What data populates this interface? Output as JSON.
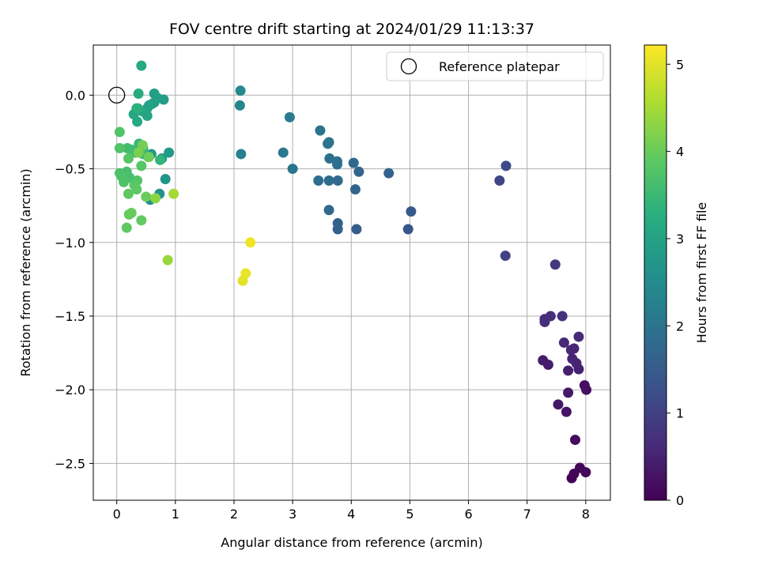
{
  "chart_data": {
    "type": "scatter",
    "title": "FOV centre drift starting at 2024/01/29 11:13:37",
    "xlabel": "Angular distance from reference (arcmin)",
    "ylabel": "Rotation from reference (arcmin)",
    "xlim": [
      -0.4,
      8.42
    ],
    "ylim": [
      -2.75,
      0.34
    ],
    "xticks": [
      0,
      1,
      2,
      3,
      4,
      5,
      6,
      7,
      8
    ],
    "yticks": [
      -2.5,
      -2.0,
      -1.5,
      -1.0,
      -0.5,
      0.0
    ],
    "xtick_labels": [
      "0",
      "1",
      "2",
      "3",
      "4",
      "5",
      "6",
      "7",
      "8"
    ],
    "ytick_labels": [
      "−2.5",
      "−2.0",
      "−1.5",
      "−1.0",
      "−0.5",
      "0.0"
    ],
    "grid": true,
    "legend": {
      "placement": "top-right",
      "entries": [
        "Reference platepar"
      ]
    },
    "colorbar": {
      "label": "Hours from first FF file",
      "colormap": "viridis",
      "range": [
        0,
        5.22
      ],
      "ticks": [
        0,
        1,
        2,
        3,
        4,
        5
      ],
      "tick_labels": [
        "0",
        "1",
        "2",
        "3",
        "4",
        "5"
      ]
    },
    "reference": {
      "x": 0,
      "y": 0
    },
    "points": [
      {
        "x": 7.76,
        "y": -2.6,
        "c": 0.02
      },
      {
        "x": 7.8,
        "y": -2.57,
        "c": 0.05
      },
      {
        "x": 7.9,
        "y": -2.53,
        "c": 0.08
      },
      {
        "x": 8.0,
        "y": -2.56,
        "c": 0.1
      },
      {
        "x": 7.82,
        "y": -2.34,
        "c": 0.15
      },
      {
        "x": 7.98,
        "y": -1.97,
        "c": 0.2
      },
      {
        "x": 8.01,
        "y": -2.0,
        "c": 0.22
      },
      {
        "x": 7.67,
        "y": -2.15,
        "c": 0.28
      },
      {
        "x": 7.53,
        "y": -2.1,
        "c": 0.32
      },
      {
        "x": 7.7,
        "y": -2.02,
        "c": 0.35
      },
      {
        "x": 7.27,
        "y": -1.8,
        "c": 0.4
      },
      {
        "x": 7.36,
        "y": -1.83,
        "c": 0.42
      },
      {
        "x": 7.7,
        "y": -1.87,
        "c": 0.45
      },
      {
        "x": 7.88,
        "y": -1.86,
        "c": 0.48
      },
      {
        "x": 7.84,
        "y": -1.82,
        "c": 0.5
      },
      {
        "x": 7.77,
        "y": -1.79,
        "c": 0.52
      },
      {
        "x": 7.8,
        "y": -1.72,
        "c": 0.55
      },
      {
        "x": 7.75,
        "y": -1.73,
        "c": 0.57
      },
      {
        "x": 7.63,
        "y": -1.68,
        "c": 0.6
      },
      {
        "x": 7.88,
        "y": -1.64,
        "c": 0.62
      },
      {
        "x": 7.3,
        "y": -1.52,
        "c": 0.65
      },
      {
        "x": 7.3,
        "y": -1.54,
        "c": 0.67
      },
      {
        "x": 7.4,
        "y": -1.5,
        "c": 0.7
      },
      {
        "x": 7.6,
        "y": -1.5,
        "c": 0.72
      },
      {
        "x": 7.48,
        "y": -1.15,
        "c": 0.85
      },
      {
        "x": 6.63,
        "y": -1.09,
        "c": 1.0
      },
      {
        "x": 6.53,
        "y": -0.58,
        "c": 1.1
      },
      {
        "x": 6.64,
        "y": -0.48,
        "c": 1.15
      },
      {
        "x": 4.97,
        "y": -0.91,
        "c": 1.4
      },
      {
        "x": 5.02,
        "y": -0.79,
        "c": 1.45
      },
      {
        "x": 4.09,
        "y": -0.91,
        "c": 1.55
      },
      {
        "x": 3.77,
        "y": -0.91,
        "c": 1.6
      },
      {
        "x": 3.77,
        "y": -0.87,
        "c": 1.62
      },
      {
        "x": 4.64,
        "y": -0.53,
        "c": 1.65
      },
      {
        "x": 4.07,
        "y": -0.64,
        "c": 1.7
      },
      {
        "x": 4.13,
        "y": -0.52,
        "c": 1.72
      },
      {
        "x": 4.04,
        "y": -0.46,
        "c": 1.75
      },
      {
        "x": 3.62,
        "y": -0.78,
        "c": 1.78
      },
      {
        "x": 3.77,
        "y": -0.58,
        "c": 1.8
      },
      {
        "x": 3.62,
        "y": -0.58,
        "c": 1.82
      },
      {
        "x": 3.44,
        "y": -0.58,
        "c": 1.85
      },
      {
        "x": 3.76,
        "y": -0.47,
        "c": 1.87
      },
      {
        "x": 3.76,
        "y": -0.45,
        "c": 1.9
      },
      {
        "x": 3.63,
        "y": -0.43,
        "c": 1.92
      },
      {
        "x": 3.6,
        "y": -0.33,
        "c": 1.95
      },
      {
        "x": 3.62,
        "y": -0.32,
        "c": 1.97
      },
      {
        "x": 3.47,
        "y": -0.24,
        "c": 2.0
      },
      {
        "x": 3.0,
        "y": -0.5,
        "c": 2.05
      },
      {
        "x": 2.84,
        "y": -0.39,
        "c": 2.1
      },
      {
        "x": 2.95,
        "y": -0.15,
        "c": 2.15
      },
      {
        "x": 2.12,
        "y": -0.4,
        "c": 2.25
      },
      {
        "x": 2.1,
        "y": -0.07,
        "c": 2.4
      },
      {
        "x": 2.11,
        "y": 0.03,
        "c": 2.45
      },
      {
        "x": 0.57,
        "y": -0.71,
        "c": 2.6
      },
      {
        "x": 0.73,
        "y": -0.67,
        "c": 2.65
      },
      {
        "x": 0.83,
        "y": -0.57,
        "c": 2.7
      },
      {
        "x": 0.77,
        "y": -0.43,
        "c": 2.75
      },
      {
        "x": 0.89,
        "y": -0.39,
        "c": 2.78
      },
      {
        "x": 0.59,
        "y": -0.4,
        "c": 2.8
      },
      {
        "x": 0.8,
        "y": -0.03,
        "c": 2.85
      },
      {
        "x": 0.64,
        "y": -0.05,
        "c": 2.88
      },
      {
        "x": 0.6,
        "y": -0.06,
        "c": 2.9
      },
      {
        "x": 0.64,
        "y": 0.01,
        "c": 2.92
      },
      {
        "x": 0.7,
        "y": -0.02,
        "c": 2.94
      },
      {
        "x": 0.52,
        "y": -0.09,
        "c": 2.97
      },
      {
        "x": 0.55,
        "y": -0.07,
        "c": 3.0
      },
      {
        "x": 0.52,
        "y": -0.14,
        "c": 3.03
      },
      {
        "x": 0.44,
        "y": -0.11,
        "c": 3.05
      },
      {
        "x": 0.34,
        "y": -0.09,
        "c": 3.08
      },
      {
        "x": 0.29,
        "y": -0.13,
        "c": 3.1
      },
      {
        "x": 0.35,
        "y": -0.18,
        "c": 3.12
      },
      {
        "x": 0.42,
        "y": 0.2,
        "c": 3.15
      },
      {
        "x": 0.37,
        "y": 0.01,
        "c": 3.2
      },
      {
        "x": 0.36,
        "y": -0.09,
        "c": 3.3
      },
      {
        "x": 0.74,
        "y": -0.44,
        "c": 3.4
      },
      {
        "x": 0.38,
        "y": -0.33,
        "c": 3.45
      },
      {
        "x": 0.45,
        "y": -0.36,
        "c": 3.5
      },
      {
        "x": 0.25,
        "y": -0.37,
        "c": 3.52
      },
      {
        "x": 0.32,
        "y": -0.39,
        "c": 3.55
      },
      {
        "x": 0.45,
        "y": -0.4,
        "c": 3.58
      },
      {
        "x": 0.18,
        "y": -0.36,
        "c": 3.6
      },
      {
        "x": 0.54,
        "y": -0.42,
        "c": 3.62
      },
      {
        "x": 0.17,
        "y": -0.52,
        "c": 3.65
      },
      {
        "x": 0.22,
        "y": -0.56,
        "c": 3.68
      },
      {
        "x": 0.05,
        "y": -0.53,
        "c": 3.7
      },
      {
        "x": 0.08,
        "y": -0.55,
        "c": 3.72
      },
      {
        "x": 0.12,
        "y": -0.59,
        "c": 3.74
      },
      {
        "x": 0.05,
        "y": -0.36,
        "c": 3.76
      },
      {
        "x": 0.05,
        "y": -0.25,
        "c": 3.78
      },
      {
        "x": 0.35,
        "y": -0.58,
        "c": 3.8
      },
      {
        "x": 0.42,
        "y": -0.48,
        "c": 3.82
      },
      {
        "x": 0.2,
        "y": -0.43,
        "c": 3.84
      },
      {
        "x": 0.3,
        "y": -0.61,
        "c": 3.86
      },
      {
        "x": 0.34,
        "y": -0.64,
        "c": 3.88
      },
      {
        "x": 0.2,
        "y": -0.67,
        "c": 3.9
      },
      {
        "x": 0.17,
        "y": -0.9,
        "c": 3.92
      },
      {
        "x": 0.42,
        "y": -0.85,
        "c": 3.94
      },
      {
        "x": 0.21,
        "y": -0.81,
        "c": 3.96
      },
      {
        "x": 0.25,
        "y": -0.8,
        "c": 3.98
      },
      {
        "x": 0.5,
        "y": -0.69,
        "c": 4.0
      },
      {
        "x": 0.55,
        "y": -0.42,
        "c": 4.05
      },
      {
        "x": 0.44,
        "y": -0.34,
        "c": 4.1
      },
      {
        "x": 0.37,
        "y": -0.39,
        "c": 4.15
      },
      {
        "x": 0.66,
        "y": -0.7,
        "c": 4.3
      },
      {
        "x": 0.87,
        "y": -1.12,
        "c": 4.4
      },
      {
        "x": 0.97,
        "y": -0.67,
        "c": 4.5
      },
      {
        "x": 2.15,
        "y": -1.26,
        "c": 5.0
      },
      {
        "x": 2.2,
        "y": -1.21,
        "c": 5.05
      },
      {
        "x": 2.28,
        "y": -1.0,
        "c": 5.1
      }
    ]
  }
}
